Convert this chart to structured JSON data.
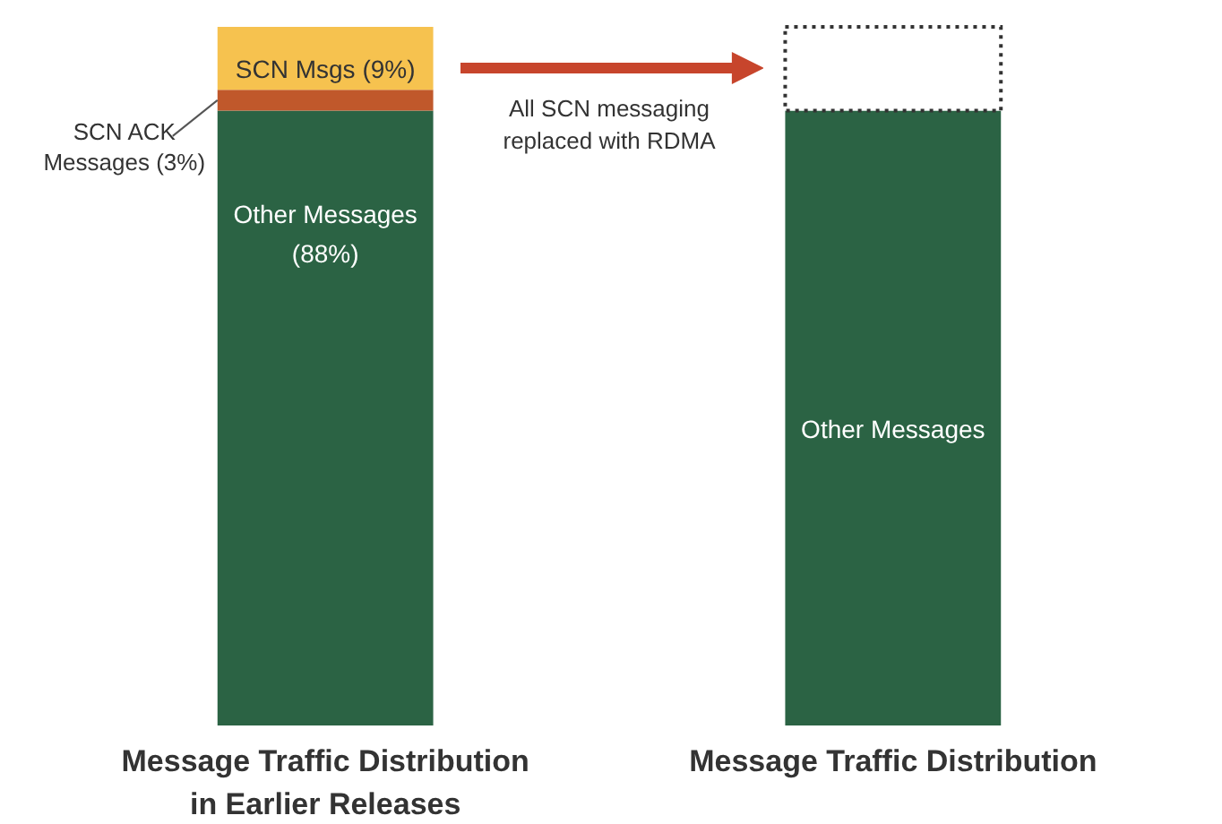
{
  "chart_data": {
    "type": "bar",
    "stacked": true,
    "categories": [
      "Message Traffic Distribution in Earlier Releases",
      "Message Traffic Distribution"
    ],
    "series": [
      {
        "name": "Other Messages",
        "color": "#2b6344",
        "values": [
          88,
          88
        ],
        "value_labels": [
          "(88%)",
          null
        ]
      },
      {
        "name": "SCN ACK Messages",
        "color": "#c0582b",
        "values": [
          3,
          null
        ],
        "value_labels": [
          "(3%)",
          null
        ]
      },
      {
        "name": "SCN Msgs",
        "color": "#f6c24f",
        "values": [
          9,
          null
        ],
        "value_labels": [
          "(9%)",
          null
        ]
      },
      {
        "color": "#ffffff",
        "values": [
          null,
          12
        ],
        "line_style": "dotted"
      }
    ],
    "annotations": [
      "All SCN messaging replaced with RDMA"
    ]
  }
}
